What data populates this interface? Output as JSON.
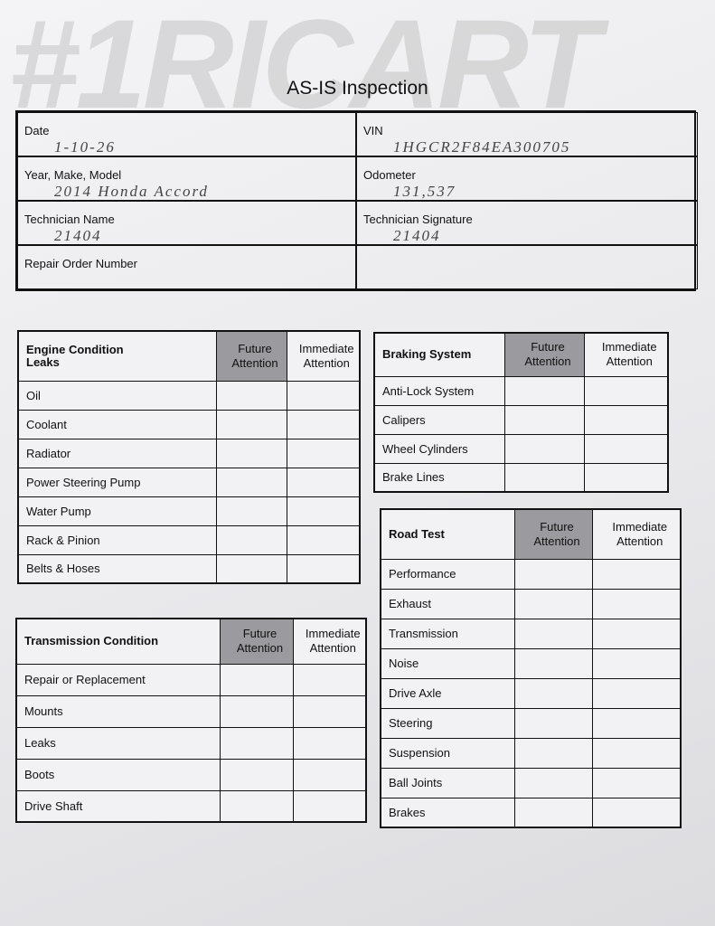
{
  "watermark": "#1RICART",
  "title": "AS-IS Inspection",
  "header": {
    "fields": [
      {
        "label": "Date",
        "value": "1-10-26"
      },
      {
        "label": "VIN",
        "value": "1HGCR2F84EA300705"
      },
      {
        "label": "Year, Make, Model",
        "value": "2014 Honda Accord"
      },
      {
        "label": "Odometer",
        "value": "131,537"
      },
      {
        "label": "Technician Name",
        "value": "21404"
      },
      {
        "label": "Technician Signature",
        "value": "21404"
      },
      {
        "label": "Repair Order Number"
      }
    ]
  },
  "tables": [
    {
      "title": "Engine Condition\nLeaks",
      "columns": [
        "Future Attention",
        "Immediate Attention"
      ],
      "rows": [
        "Oil",
        "Coolant",
        "Radiator",
        "Power Steering Pump",
        "Water Pump",
        "Rack & Pinion",
        "Belts & Hoses"
      ]
    },
    {
      "title": "Braking System",
      "columns": [
        "Future Attention",
        "Immediate Attention"
      ],
      "rows": [
        "Anti-Lock System",
        "Calipers",
        "Wheel Cylinders",
        "Brake Lines"
      ]
    },
    {
      "title": "Transmission Condition",
      "columns": [
        "Future Attention",
        "Immediate Attention"
      ],
      "rows": [
        "Repair or Replacement",
        "Mounts",
        "Leaks",
        "Boots",
        "Drive Shaft"
      ]
    },
    {
      "title": "Road Test",
      "columns": [
        "Future Attention",
        "Immediate Attention"
      ],
      "rows": [
        "Performance",
        "Exhaust",
        "Transmission",
        "Noise",
        "Drive Axle",
        "Steering",
        "Suspension",
        "Ball Joints",
        "Brakes"
      ]
    }
  ]
}
